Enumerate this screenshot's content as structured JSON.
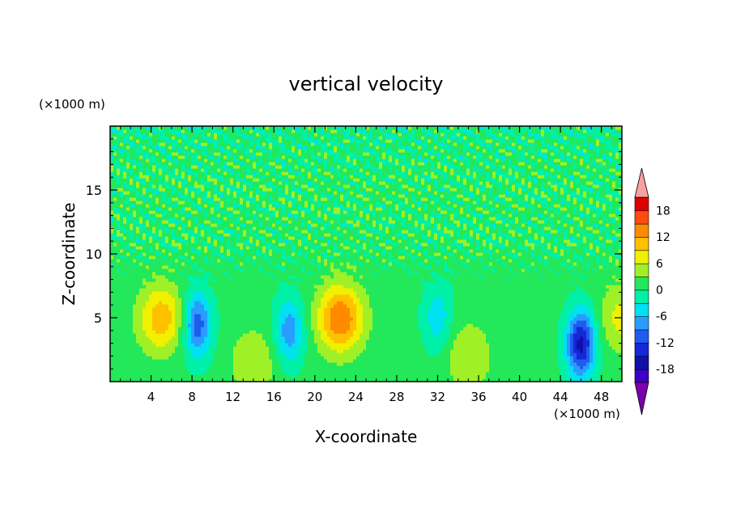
{
  "chart_data": {
    "type": "heatmap",
    "title": "vertical velocity",
    "xlabel": "X-coordinate",
    "ylabel": "Z-coordinate",
    "x_unit": "(×1000 m)",
    "y_unit": "(×1000 m)",
    "xlim": [
      0,
      50
    ],
    "ylim": [
      0,
      20
    ],
    "xticks": [
      4,
      8,
      12,
      16,
      20,
      24,
      28,
      32,
      36,
      40,
      44,
      48
    ],
    "yticks": [
      5,
      10,
      15
    ],
    "colorbar": {
      "levels": [
        -21,
        -18,
        -15,
        -12,
        -9,
        -6,
        -3,
        0,
        3,
        6,
        9,
        12,
        15,
        18,
        21
      ],
      "tick_labels": [
        -18,
        -12,
        -6,
        0,
        6,
        12,
        18
      ],
      "colors": [
        "#7a00a8",
        "#3a00c8",
        "#1010a8",
        "#1528d8",
        "#1e5cf0",
        "#2a9cff",
        "#00e0f0",
        "#00f0a8",
        "#22e85a",
        "#a0f028",
        "#f0f000",
        "#ffc000",
        "#ff8a00",
        "#ff4a10",
        "#e00000",
        "#f8a0a0"
      ],
      "extend": "both"
    },
    "field_features": [
      {
        "sign": "positive",
        "x": 5,
        "z": 5,
        "peak": 10
      },
      {
        "sign": "negative",
        "x": 8.5,
        "z": 4.5,
        "peak": -12
      },
      {
        "sign": "positive",
        "x": 14,
        "z": 1.5,
        "peak": 5
      },
      {
        "sign": "negative",
        "x": 17.5,
        "z": 4,
        "peak": -9
      },
      {
        "sign": "positive",
        "x": 22.5,
        "z": 5,
        "peak": 14
      },
      {
        "sign": "negative",
        "x": 32,
        "z": 5,
        "peak": -6
      },
      {
        "sign": "positive",
        "x": 35,
        "z": 2,
        "peak": 5
      },
      {
        "sign": "negative",
        "x": 46,
        "z": 3,
        "peak": -17
      },
      {
        "sign": "positive",
        "x": 50,
        "z": 5,
        "peak": 6
      }
    ]
  }
}
